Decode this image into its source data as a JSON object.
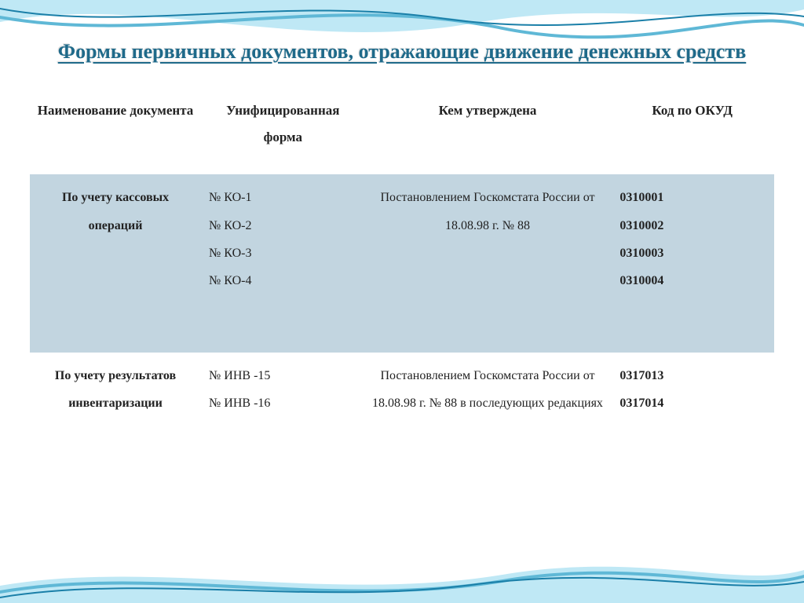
{
  "title": "Формы первичных документов, отражающие движение денежных средств",
  "colors": {
    "title_color": "#1f6a8a",
    "band_bg": "#c2d5e0",
    "wave_light": "#bfe8f5",
    "wave_dark": "#5fb8d6",
    "wave_deep": "#1a7fa8",
    "text": "#222222"
  },
  "columns": [
    "Наименование документа",
    "Унифицированная форма",
    "Кем утверждена",
    "Код по ОКУД"
  ],
  "rows": [
    {
      "band": true,
      "doc_name": "По учету кассовых операций",
      "forms": [
        "№ КО-1",
        "№ КО-2",
        "№ КО-3",
        "№ КО-4"
      ],
      "approved": "Постановлением Госкомстата России от 18.08.98 г. № 88",
      "codes": [
        "0310001",
        "0310002",
        "0310003",
        "0310004"
      ]
    },
    {
      "band": false,
      "doc_name": "По учету результатов инвентаризации",
      "forms": [
        "№ ИНВ -15",
        "№ ИНВ -16"
      ],
      "approved": "Постановлением Госкомстата России от 18.08.98 г. № 88 в последующих редакциях",
      "codes": [
        "0317013",
        "0317014"
      ]
    }
  ]
}
